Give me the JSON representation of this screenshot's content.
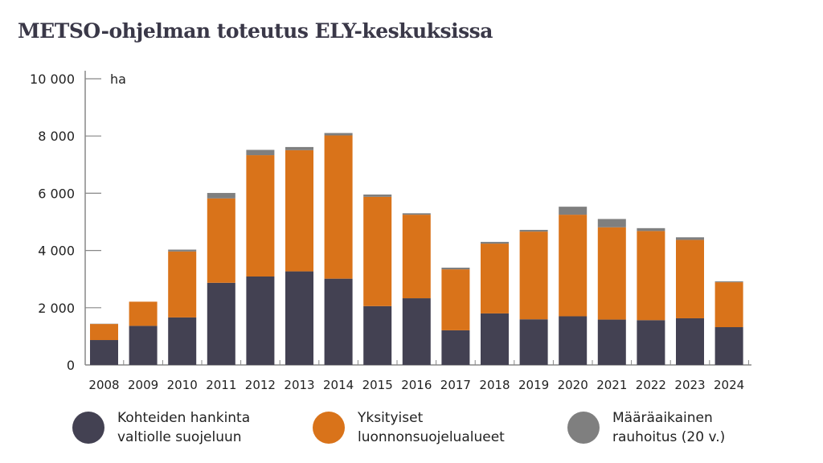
{
  "title": "METSO-ohjelman toteutus ELY-keskuksissa",
  "chart_data": {
    "type": "bar",
    "stacked": true,
    "title": "METSO-ohjelman toteutus ELY-keskuksissa",
    "ylabel": "ha",
    "xlabel": "",
    "ylim": [
      0,
      10000
    ],
    "yticks": [
      0,
      2000,
      4000,
      6000,
      8000,
      10000
    ],
    "ytick_labels": [
      "0",
      "2 000",
      "4 000",
      "6 000",
      "8 000",
      "10 000"
    ],
    "grid": false,
    "legend_position": "bottom",
    "categories": [
      "2008",
      "2009",
      "2010",
      "2011",
      "2012",
      "2013",
      "2014",
      "2015",
      "2016",
      "2017",
      "2018",
      "2019",
      "2020",
      "2021",
      "2022",
      "2023",
      "2024"
    ],
    "series": [
      {
        "name": "Kohteiden hankinta valtiolle suojeluun",
        "color": "#434152",
        "values": [
          870,
          1365,
          1660,
          2870,
          3090,
          3270,
          3015,
          2055,
          2330,
          1210,
          1800,
          1595,
          1700,
          1585,
          1565,
          1630,
          1320
        ]
      },
      {
        "name": "Yksityiset luonnonsuojelualueet",
        "color": "#d9731a",
        "values": [
          560,
          845,
          2305,
          2950,
          4240,
          4235,
          5005,
          3820,
          2920,
          2130,
          2440,
          3065,
          3550,
          3225,
          3115,
          2740,
          1570
        ]
      },
      {
        "name": "Määräaikainen rauhoitus (20 v.)",
        "color": "#7f7f7f",
        "values": [
          10,
          0,
          65,
          190,
          185,
          110,
          85,
          80,
          50,
          60,
          60,
          60,
          280,
          290,
          100,
          90,
          30
        ]
      }
    ]
  },
  "legend": [
    {
      "line1": "Kohteiden hankinta",
      "line2": "valtiolle suojeluun",
      "color": "#434152"
    },
    {
      "line1": "Yksityiset",
      "line2": "luonnonsuojelualueet",
      "color": "#d9731a"
    },
    {
      "line1": "Määräaikainen",
      "line2": "rauhoitus (20 v.)",
      "color": "#7f7f7f"
    }
  ]
}
